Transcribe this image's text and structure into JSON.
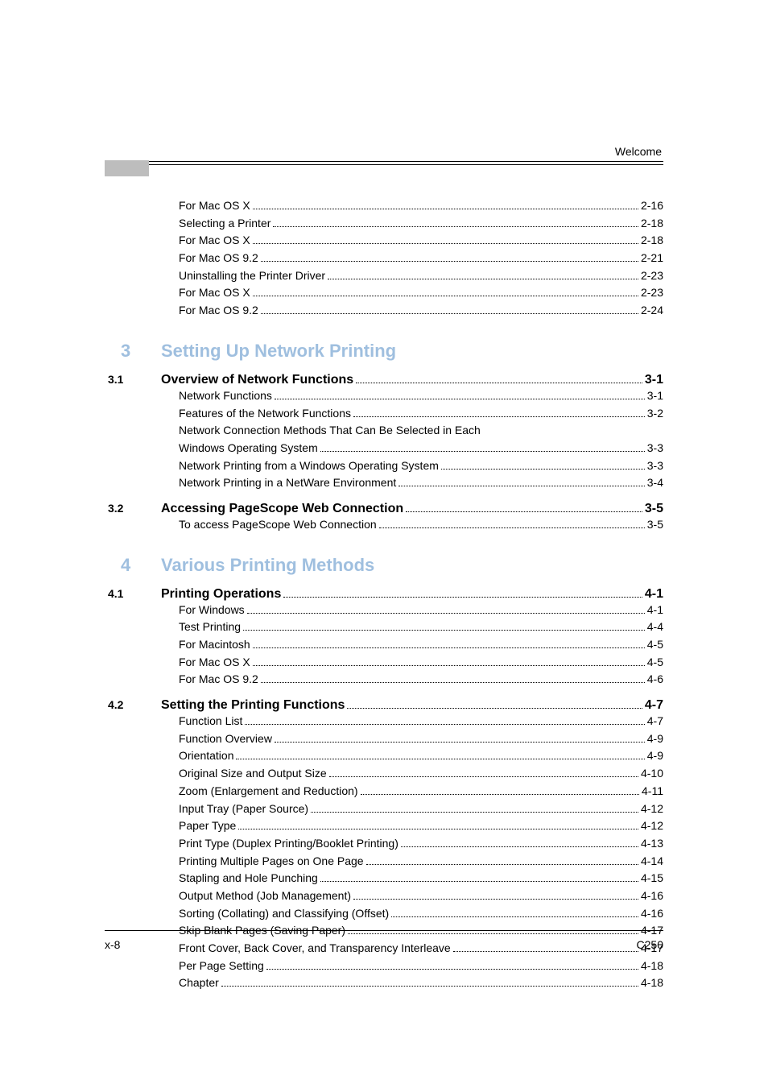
{
  "header": {
    "label": "Welcome"
  },
  "pre_entries": [
    {
      "label": "For Mac OS X ",
      "page": "2-16"
    },
    {
      "label": "Selecting a Printer ",
      "page": "2-18"
    },
    {
      "label": "For Mac OS X ",
      "page": "2-18"
    },
    {
      "label": "For Mac OS 9.2 ",
      "page": "2-21"
    },
    {
      "label": "Uninstalling the Printer Driver ",
      "page": "2-23"
    },
    {
      "label": "For Mac OS X ",
      "page": "2-23"
    },
    {
      "label": "For Mac OS 9.2 ",
      "page": "2-24"
    }
  ],
  "chapters": [
    {
      "num": "3",
      "title": "Setting Up Network Printing",
      "sections": [
        {
          "num": "3.1",
          "label": "Overview of Network Functions ",
          "page": "3-1",
          "entries": [
            {
              "label": "Network Functions ",
              "page": "3-1"
            },
            {
              "label": "Features of the Network Functions ",
              "page": "3-2"
            },
            {
              "plain": "Network Connection Methods That Can Be Selected in Each"
            },
            {
              "label": "Windows Operating System ",
              "page": "3-3"
            },
            {
              "label": "Network Printing from a Windows Operating System ",
              "page": "3-3"
            },
            {
              "label": "Network Printing in a NetWare Environment ",
              "page": "3-4"
            }
          ]
        },
        {
          "num": "3.2",
          "label": "Accessing PageScope Web Connection ",
          "page": "3-5",
          "entries": [
            {
              "label": "To access PageScope Web Connection ",
              "page": "3-5"
            }
          ]
        }
      ]
    },
    {
      "num": "4",
      "title": "Various Printing Methods",
      "sections": [
        {
          "num": "4.1",
          "label": "Printing Operations ",
          "page": "4-1",
          "entries": [
            {
              "label": "For Windows ",
              "page": "4-1"
            },
            {
              "label": "Test Printing ",
              "page": "4-4"
            },
            {
              "label": "For Macintosh ",
              "page": "4-5"
            },
            {
              "label": "For Mac OS X ",
              "page": "4-5"
            },
            {
              "label": "For Mac OS 9.2 ",
              "page": "4-6"
            }
          ]
        },
        {
          "num": "4.2",
          "label": "Setting the Printing Functions ",
          "page": "4-7",
          "entries": [
            {
              "label": "Function List ",
              "page": "4-7"
            },
            {
              "label": "Function Overview ",
              "page": "4-9"
            },
            {
              "label": "Orientation ",
              "page": "4-9"
            },
            {
              "label": "Original Size and Output Size ",
              "page": "4-10"
            },
            {
              "label": "Zoom (Enlargement and Reduction) ",
              "page": "4-11"
            },
            {
              "label": "Input Tray (Paper Source) ",
              "page": "4-12"
            },
            {
              "label": "Paper Type ",
              "page": "4-12"
            },
            {
              "label": "Print Type (Duplex Printing/Booklet Printing) ",
              "page": "4-13"
            },
            {
              "label": "Printing Multiple Pages on One Page ",
              "page": "4-14"
            },
            {
              "label": "Stapling and Hole Punching ",
              "page": "4-15"
            },
            {
              "label": "Output Method (Job Management) ",
              "page": "4-16"
            },
            {
              "label": "Sorting (Collating) and Classifying (Offset) ",
              "page": "4-16"
            },
            {
              "label": "Skip Blank Pages (Saving Paper) ",
              "page": "4-17"
            },
            {
              "label": "Front Cover, Back Cover, and Transparency Interleave ",
              "page": "4-17"
            },
            {
              "label": "Per Page Setting ",
              "page": "4-18"
            },
            {
              "label": "Chapter ",
              "page": "4-18"
            }
          ]
        }
      ]
    }
  ],
  "footer": {
    "left": "x-8",
    "right": "C250"
  }
}
